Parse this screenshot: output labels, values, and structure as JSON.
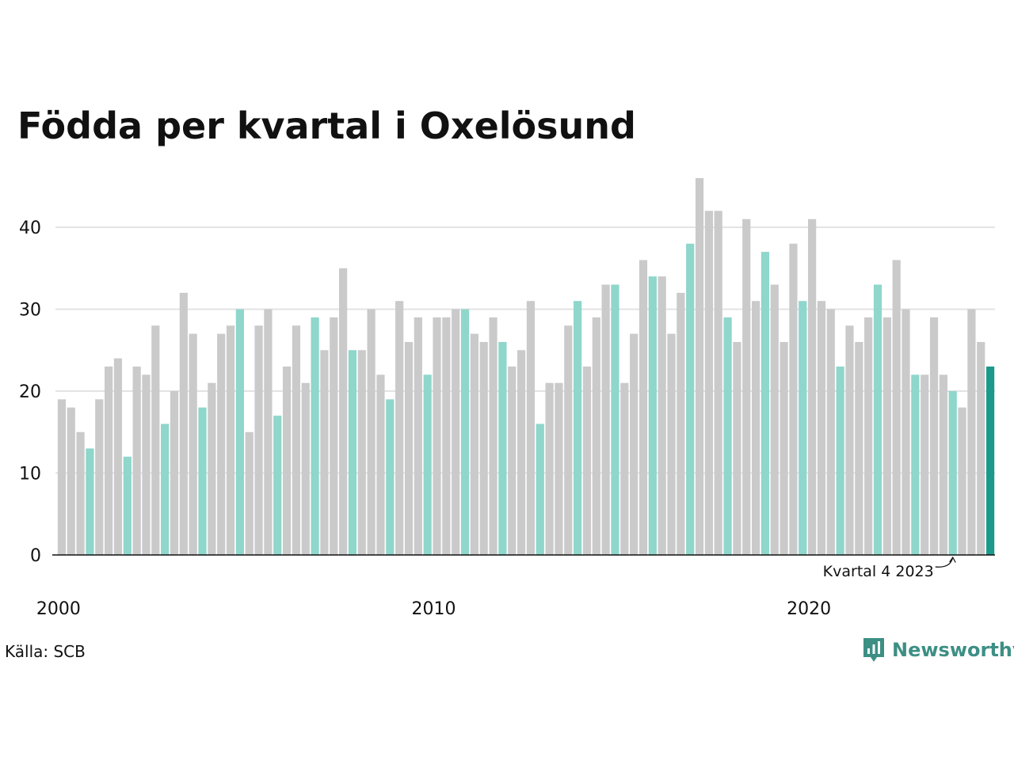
{
  "page": {
    "title": "Födda per kvartal i Oxelösund",
    "source": "Källa: SCB",
    "brand": "Newsworthy",
    "brand_icon": "newsworthy-logo-icon"
  },
  "colors": {
    "other_quarter": "#cacaca",
    "same_quarter": "#8fd6cb",
    "latest": "#1b998b",
    "grid": "#e3e3e3",
    "baseline": "#111111",
    "brand": "#3d8f84"
  },
  "chart_data": {
    "type": "bar",
    "title": "Födda per kvartal i Oxelösund",
    "xlabel": "",
    "ylabel": "",
    "ylim": [
      0,
      46
    ],
    "yticks": [
      0,
      10,
      20,
      30,
      40
    ],
    "grid": true,
    "start": "2000-Q1",
    "x_tick_labels": [
      "2000",
      "2010",
      "2020"
    ],
    "highlight_quarter": 4,
    "annotation": {
      "text": "Kvartal 4 2023",
      "target": "2023-Q4"
    },
    "series": [
      {
        "values": [
          19,
          18,
          15,
          13,
          19,
          23,
          24,
          12,
          23,
          22,
          28,
          16,
          20,
          32,
          27,
          18,
          21,
          27,
          28,
          30,
          15,
          28,
          30,
          17,
          23,
          28,
          21,
          29,
          25,
          29,
          35,
          25,
          25,
          30,
          22,
          19,
          31,
          26,
          29,
          22,
          29,
          29,
          30,
          30,
          27,
          26,
          29,
          26,
          23,
          25,
          31,
          16,
          21,
          21,
          28,
          31,
          23,
          29,
          33,
          33,
          21,
          27,
          36,
          34,
          34,
          27,
          32,
          38,
          46,
          42,
          42,
          29,
          26,
          41,
          31,
          37,
          33,
          26,
          38,
          31,
          41,
          31,
          30,
          23,
          28,
          26,
          29,
          33,
          29,
          36,
          30,
          22,
          22,
          29,
          22,
          20,
          18,
          30,
          26,
          23
        ]
      }
    ]
  }
}
